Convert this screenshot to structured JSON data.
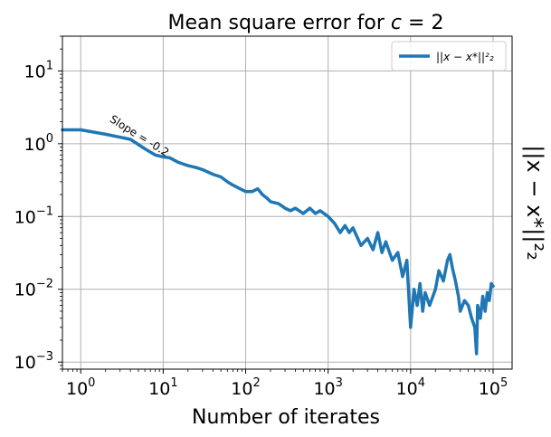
{
  "chart_data": {
    "type": "line",
    "title": "Mean square error for c = 2",
    "title_parts": {
      "prefix": "Mean square error for ",
      "var": "c",
      "suffix": " = 2"
    },
    "xlabel": "Number of iterates",
    "ylabel": "||x − x*||²₂",
    "xscale": "log",
    "yscale": "log",
    "xlim": [
      0.6,
      170000
    ],
    "ylim": [
      0.0008,
      30
    ],
    "x_ticks": [
      {
        "value": 1,
        "base": "10",
        "exp": "0"
      },
      {
        "value": 10,
        "base": "10",
        "exp": "1"
      },
      {
        "value": 100,
        "base": "10",
        "exp": "2"
      },
      {
        "value": 1000,
        "base": "10",
        "exp": "3"
      },
      {
        "value": 10000,
        "base": "10",
        "exp": "4"
      },
      {
        "value": 100000,
        "base": "10",
        "exp": "5"
      }
    ],
    "y_ticks": [
      {
        "value": 0.001,
        "base": "10",
        "exp": "−3"
      },
      {
        "value": 0.01,
        "base": "10",
        "exp": "−2"
      },
      {
        "value": 0.1,
        "base": "10",
        "exp": "−1"
      },
      {
        "value": 1,
        "base": "10",
        "exp": "0"
      },
      {
        "value": 10,
        "base": "10",
        "exp": "1"
      }
    ],
    "grid": true,
    "legend_position": "top-right",
    "series": [
      {
        "name": "||x − x*||²₂",
        "color": "#1f77b4",
        "points": [
          [
            0.6,
            1.55
          ],
          [
            1,
            1.55
          ],
          [
            2,
            1.35
          ],
          [
            4,
            1.15
          ],
          [
            6,
            0.85
          ],
          [
            8,
            0.7
          ],
          [
            10,
            0.66
          ],
          [
            12,
            0.64
          ],
          [
            15,
            0.56
          ],
          [
            20,
            0.5
          ],
          [
            25,
            0.47
          ],
          [
            30,
            0.44
          ],
          [
            40,
            0.38
          ],
          [
            50,
            0.35
          ],
          [
            60,
            0.3
          ],
          [
            70,
            0.27
          ],
          [
            80,
            0.25
          ],
          [
            100,
            0.22
          ],
          [
            120,
            0.22
          ],
          [
            140,
            0.24
          ],
          [
            160,
            0.2
          ],
          [
            180,
            0.18
          ],
          [
            200,
            0.16
          ],
          [
            250,
            0.15
          ],
          [
            300,
            0.13
          ],
          [
            350,
            0.12
          ],
          [
            400,
            0.13
          ],
          [
            500,
            0.11
          ],
          [
            600,
            0.13
          ],
          [
            700,
            0.11
          ],
          [
            800,
            0.12
          ],
          [
            1000,
            0.1
          ],
          [
            1200,
            0.08
          ],
          [
            1400,
            0.06
          ],
          [
            1600,
            0.075
          ],
          [
            1800,
            0.06
          ],
          [
            2000,
            0.07
          ],
          [
            2500,
            0.04
          ],
          [
            3000,
            0.05
          ],
          [
            3500,
            0.035
          ],
          [
            4000,
            0.06
          ],
          [
            4500,
            0.032
          ],
          [
            5000,
            0.045
          ],
          [
            6000,
            0.025
          ],
          [
            7000,
            0.032
          ],
          [
            8000,
            0.015
          ],
          [
            9000,
            0.025
          ],
          [
            10000,
            0.003
          ],
          [
            11000,
            0.01
          ],
          [
            12000,
            0.006
          ],
          [
            13000,
            0.012
          ],
          [
            14000,
            0.005
          ],
          [
            15000,
            0.009
          ],
          [
            17000,
            0.006
          ],
          [
            20000,
            0.01
          ],
          [
            22000,
            0.018
          ],
          [
            25000,
            0.013
          ],
          [
            28000,
            0.025
          ],
          [
            30000,
            0.03
          ],
          [
            32000,
            0.02
          ],
          [
            35000,
            0.013
          ],
          [
            38000,
            0.008
          ],
          [
            40000,
            0.005
          ],
          [
            45000,
            0.007
          ],
          [
            50000,
            0.006
          ],
          [
            55000,
            0.004
          ],
          [
            60000,
            0.003
          ],
          [
            63000,
            0.0013
          ],
          [
            65000,
            0.006
          ],
          [
            70000,
            0.004
          ],
          [
            75000,
            0.008
          ],
          [
            80000,
            0.005
          ],
          [
            85000,
            0.009
          ],
          [
            90000,
            0.007
          ],
          [
            95000,
            0.012
          ],
          [
            100000,
            0.011
          ]
        ]
      }
    ],
    "annotations": [
      {
        "text": "Slope = -0.2",
        "x": 2.2,
        "y": 2.05
      }
    ]
  }
}
